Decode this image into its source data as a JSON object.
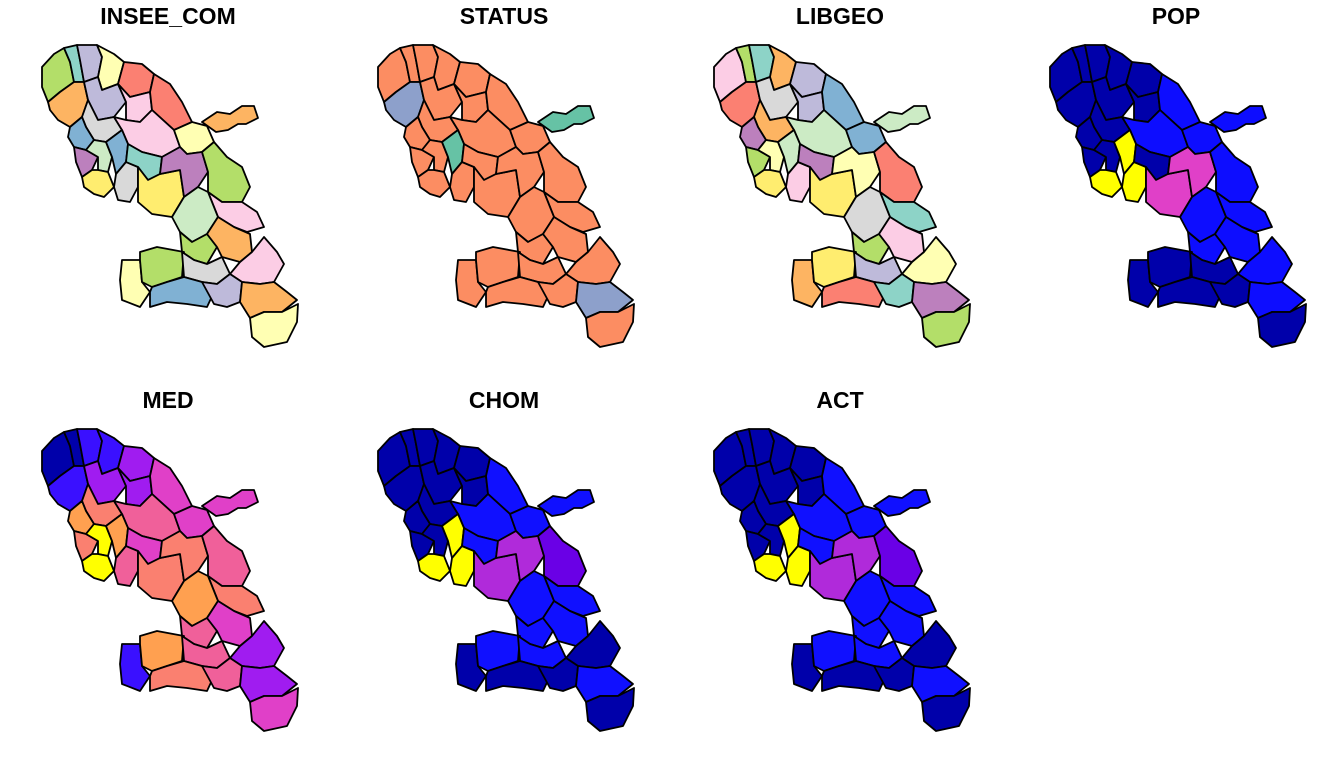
{
  "figure": {
    "panels": [
      {
        "variable": "INSEE_COM",
        "palette": [
          "#B3DE69",
          "#8DD3C7",
          "#BEBADA",
          "#FFFFB3",
          "#FB8072",
          "#FDB462",
          "#FCCDE5",
          "#D9D9D9",
          "#80B1D3",
          "#BC80BD",
          "#CCEBC5",
          "#FFED6F"
        ]
      },
      {
        "variable": "STATUS",
        "palette": [
          "#FC8D62",
          "#8DA0CB",
          "#66C2A5"
        ]
      },
      {
        "variable": "LIBGEO",
        "palette": [
          "#FCCDE5",
          "#B3DE69",
          "#8DD3C7",
          "#FDB462",
          "#BEBADA",
          "#FB8072",
          "#D9D9D9",
          "#80B1D3",
          "#BC80BD",
          "#CCEBC5",
          "#FFFFB3",
          "#FFED6F"
        ]
      },
      {
        "variable": "POP",
        "palette": [
          "#0000AA",
          "#0D0DFF",
          "#6A00E6",
          "#E040C8",
          "#FFFF00"
        ]
      },
      {
        "variable": "MED",
        "palette": [
          "#0000AA",
          "#3A10FF",
          "#A01CF0",
          "#E040C8",
          "#F0609A",
          "#FA8070",
          "#FFA050",
          "#FFFF00"
        ]
      },
      {
        "variable": "CHOM",
        "palette": [
          "#0000AA",
          "#1010FF",
          "#6A00E6",
          "#B02ADA",
          "#FFFF00"
        ]
      },
      {
        "variable": "ACT",
        "palette": [
          "#0000AA",
          "#1010FF",
          "#6A00E6",
          "#B02ADA",
          "#FFFF00"
        ]
      }
    ]
  }
}
